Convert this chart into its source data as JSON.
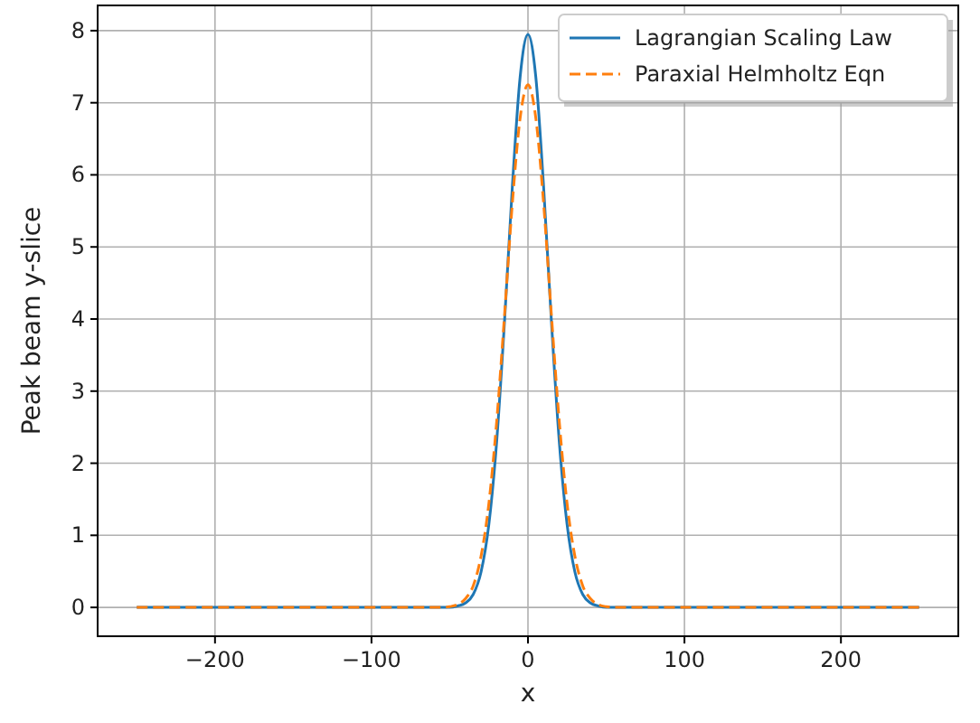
{
  "chart_data": {
    "type": "line",
    "xlabel": "x",
    "ylabel": "Peak beam y-slice",
    "x": [
      -250,
      -200,
      -150,
      -100,
      -60,
      -55,
      -50,
      -45,
      -40,
      -35,
      -30,
      -25,
      -20,
      -15,
      -10,
      -5,
      0,
      5,
      10,
      15,
      20,
      25,
      30,
      35,
      40,
      45,
      50,
      55,
      60,
      100,
      150,
      200,
      250
    ],
    "series": [
      {
        "name": "Lagrangian Scaling Law",
        "color": "#1f77b4",
        "line_style": "solid",
        "values": [
          0,
          0,
          0,
          0,
          0,
          0,
          0,
          0.02,
          0.06,
          0.18,
          0.49,
          1.15,
          2.3,
          3.96,
          5.83,
          7.36,
          7.95,
          7.36,
          5.83,
          3.96,
          2.3,
          1.15,
          0.49,
          0.18,
          0.06,
          0.02,
          0,
          0,
          0,
          0,
          0,
          0,
          0
        ]
      },
      {
        "name": "Paraxial Helmholtz Eqn",
        "color": "#ff7f0e",
        "line_style": "dashed",
        "values": [
          0,
          0,
          0,
          0,
          0,
          0,
          0.01,
          0.04,
          0.12,
          0.3,
          0.71,
          1.44,
          2.58,
          4.05,
          5.6,
          6.79,
          7.25,
          6.79,
          5.6,
          4.05,
          2.58,
          1.44,
          0.71,
          0.3,
          0.12,
          0.04,
          0.01,
          0,
          0,
          0,
          0,
          0,
          0
        ]
      }
    ],
    "xlim": [
      -275,
      275
    ],
    "ylim": [
      -0.4,
      8.35
    ],
    "xticks": [
      -200,
      -100,
      0,
      100,
      200
    ],
    "yticks": [
      0,
      1,
      2,
      3,
      4,
      5,
      6,
      7,
      8
    ],
    "grid": true,
    "legend": "top right"
  }
}
